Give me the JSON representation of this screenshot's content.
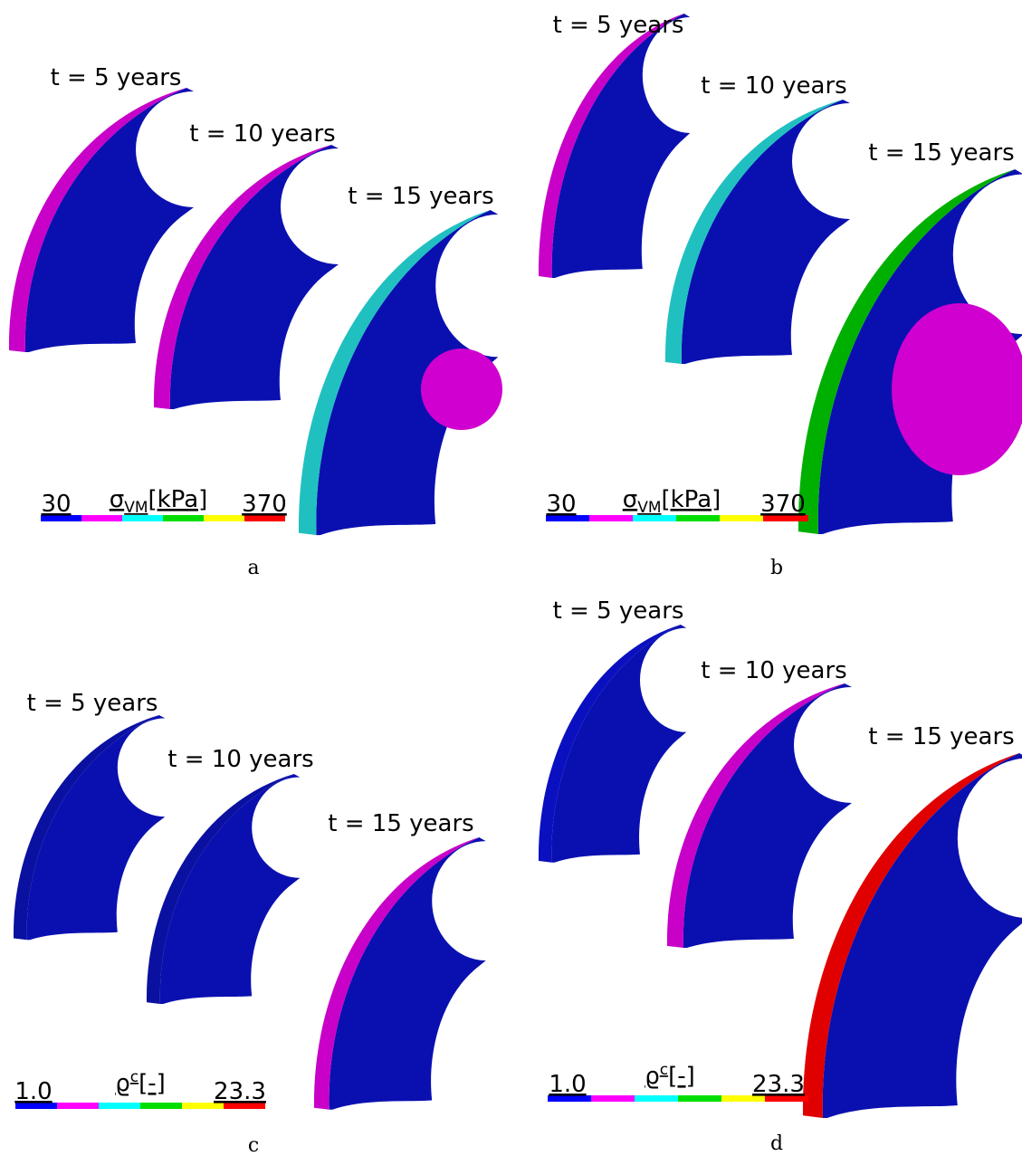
{
  "panels": [
    {
      "letter": "a",
      "times": [
        "t = 5 years",
        "t = 10 years",
        "t = 15 years"
      ],
      "legend": {
        "min": "30",
        "symbol": "σ",
        "index": "VM",
        "unit": "[kPa]",
        "max": "370"
      }
    },
    {
      "letter": "b",
      "times": [
        "t = 5 years",
        "t = 10 years",
        "t = 15 years"
      ],
      "legend": {
        "min": "30",
        "symbol": "σ",
        "index": "VM",
        "unit": "[kPa]",
        "max": "370"
      }
    },
    {
      "letter": "c",
      "times": [
        "t = 5 years",
        "t = 10 years",
        "t = 15 years"
      ],
      "legend": {
        "min": "1.0",
        "symbol": "ϱ",
        "index": "c",
        "unit": "[-]",
        "max": "23.3"
      }
    },
    {
      "letter": "d",
      "times": [
        "t = 5 years",
        "t = 10 years",
        "t = 15 years"
      ],
      "legend": {
        "min": "1.0",
        "symbol": "ϱ",
        "index": "c",
        "unit": "[-]",
        "max": "23.3"
      }
    }
  ]
}
